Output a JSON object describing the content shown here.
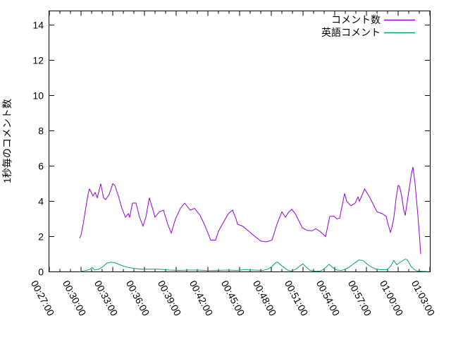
{
  "chart_data": {
    "type": "line",
    "title": "",
    "xlabel": "",
    "ylabel": "1秒毎のコメント数",
    "ylim": [
      0,
      14.8
    ],
    "y_ticks": [
      0,
      2,
      4,
      6,
      8,
      10,
      12,
      14
    ],
    "x_ticks": [
      "00:27:00",
      "00:30:00",
      "00:33:00",
      "00:36:00",
      "00:39:00",
      "00:42:00",
      "00:45:00",
      "00:48:00",
      "00:51:00",
      "00:54:00",
      "00:57:00",
      "01:00:00",
      "01:03:00"
    ],
    "x_minor_tick_seconds": 60,
    "grid": false,
    "legend_position": "top-right-inside",
    "axis_color": "#000000",
    "series": [
      {
        "name": "コメント数",
        "color": "#9400d3",
        "points": [
          [
            "00:29:52",
            1.9
          ],
          [
            "00:30:00",
            2.1
          ],
          [
            "00:30:12",
            2.7
          ],
          [
            "00:30:28",
            3.7
          ],
          [
            "00:30:40",
            4.4
          ],
          [
            "00:30:48",
            4.7
          ],
          [
            "00:31:08",
            4.3
          ],
          [
            "00:31:20",
            4.5
          ],
          [
            "00:31:32",
            4.2
          ],
          [
            "00:31:52",
            5.0
          ],
          [
            "00:32:08",
            4.2
          ],
          [
            "00:32:20",
            4.1
          ],
          [
            "00:32:40",
            4.4
          ],
          [
            "00:33:00",
            5.0
          ],
          [
            "00:33:12",
            4.9
          ],
          [
            "00:33:32",
            4.3
          ],
          [
            "00:33:52",
            3.6
          ],
          [
            "00:34:12",
            3.1
          ],
          [
            "00:34:28",
            3.3
          ],
          [
            "00:34:36",
            3.1
          ],
          [
            "00:34:52",
            3.9
          ],
          [
            "00:35:12",
            3.9
          ],
          [
            "00:35:32",
            3.1
          ],
          [
            "00:35:52",
            2.6
          ],
          [
            "00:36:08",
            3.1
          ],
          [
            "00:36:28",
            4.2
          ],
          [
            "00:37:00",
            3.1
          ],
          [
            "00:37:24",
            3.4
          ],
          [
            "00:37:48",
            3.5
          ],
          [
            "00:38:12",
            2.7
          ],
          [
            "00:38:32",
            2.2
          ],
          [
            "00:38:56",
            3.0
          ],
          [
            "00:39:24",
            3.6
          ],
          [
            "00:39:48",
            3.9
          ],
          [
            "00:40:20",
            3.5
          ],
          [
            "00:40:44",
            3.6
          ],
          [
            "00:41:16",
            3.2
          ],
          [
            "00:41:44",
            2.6
          ],
          [
            "00:42:16",
            1.8
          ],
          [
            "00:42:44",
            1.8
          ],
          [
            "00:43:00",
            2.3
          ],
          [
            "00:43:28",
            2.8
          ],
          [
            "00:43:56",
            3.3
          ],
          [
            "00:44:20",
            3.5
          ],
          [
            "00:44:40",
            3.0
          ],
          [
            "00:44:48",
            2.7
          ],
          [
            "00:45:16",
            2.6
          ],
          [
            "00:45:52",
            2.3
          ],
          [
            "00:46:28",
            2.0
          ],
          [
            "00:47:00",
            1.75
          ],
          [
            "00:47:32",
            1.7
          ],
          [
            "00:48:04",
            1.8
          ],
          [
            "00:48:32",
            2.7
          ],
          [
            "00:49:00",
            3.4
          ],
          [
            "00:49:20",
            3.1
          ],
          [
            "00:49:36",
            3.35
          ],
          [
            "00:49:56",
            3.55
          ],
          [
            "00:50:16",
            3.3
          ],
          [
            "00:50:56",
            2.5
          ],
          [
            "00:51:24",
            2.35
          ],
          [
            "00:51:52",
            2.33
          ],
          [
            "00:52:12",
            2.45
          ],
          [
            "00:52:36",
            2.3
          ],
          [
            "00:53:08",
            2.0
          ],
          [
            "00:53:32",
            3.15
          ],
          [
            "00:53:56",
            3.15
          ],
          [
            "00:54:12",
            3.0
          ],
          [
            "00:54:28",
            3.05
          ],
          [
            "00:54:56",
            4.45
          ],
          [
            "00:55:08",
            4.0
          ],
          [
            "00:55:32",
            3.75
          ],
          [
            "00:55:56",
            3.9
          ],
          [
            "00:56:12",
            4.25
          ],
          [
            "00:56:20",
            4.0
          ],
          [
            "00:56:50",
            4.7
          ],
          [
            "00:57:20",
            4.2
          ],
          [
            "00:57:40",
            3.8
          ],
          [
            "00:58:00",
            3.4
          ],
          [
            "00:58:30",
            3.3
          ],
          [
            "00:58:52",
            3.15
          ],
          [
            "00:59:00",
            2.8
          ],
          [
            "00:59:16",
            2.25
          ],
          [
            "00:59:24",
            2.5
          ],
          [
            "00:59:36",
            3.1
          ],
          [
            "00:59:48",
            4.15
          ],
          [
            "01:00:00",
            4.9
          ],
          [
            "01:00:08",
            4.85
          ],
          [
            "01:00:20",
            4.3
          ],
          [
            "01:00:32",
            3.5
          ],
          [
            "01:00:40",
            3.2
          ],
          [
            "01:00:52",
            4.0
          ],
          [
            "01:01:04",
            4.8
          ],
          [
            "01:01:16",
            5.6
          ],
          [
            "01:01:24",
            5.95
          ],
          [
            "01:01:36",
            5.0
          ],
          [
            "01:01:44",
            4.1
          ],
          [
            "01:01:52",
            3.2
          ],
          [
            "01:02:00",
            2.2
          ],
          [
            "01:02:08",
            1.0
          ]
        ]
      },
      {
        "name": "英語コメント",
        "color": "#009e73",
        "points": [
          [
            "00:29:52",
            0.0
          ],
          [
            "00:30:12",
            0.05
          ],
          [
            "00:30:36",
            0.1
          ],
          [
            "00:30:52",
            0.15
          ],
          [
            "00:31:04",
            0.25
          ],
          [
            "00:31:16",
            0.1
          ],
          [
            "00:31:40",
            0.15
          ],
          [
            "00:32:04",
            0.3
          ],
          [
            "00:32:28",
            0.5
          ],
          [
            "00:32:52",
            0.55
          ],
          [
            "00:33:16",
            0.5
          ],
          [
            "00:33:40",
            0.4
          ],
          [
            "00:34:00",
            0.33
          ],
          [
            "00:34:28",
            0.25
          ],
          [
            "00:35:00",
            0.2
          ],
          [
            "00:35:40",
            0.15
          ],
          [
            "00:36:28",
            0.15
          ],
          [
            "00:37:20",
            0.15
          ],
          [
            "00:38:20",
            0.1
          ],
          [
            "00:39:20",
            0.08
          ],
          [
            "00:40:12",
            0.1
          ],
          [
            "00:41:00",
            0.1
          ],
          [
            "00:42:00",
            0.07
          ],
          [
            "00:43:00",
            0.08
          ],
          [
            "00:43:48",
            0.1
          ],
          [
            "00:44:40",
            0.08
          ],
          [
            "00:45:32",
            0.12
          ],
          [
            "00:46:20",
            0.1
          ],
          [
            "00:47:12",
            0.08
          ],
          [
            "00:47:40",
            0.15
          ],
          [
            "00:48:04",
            0.3
          ],
          [
            "00:48:24",
            0.52
          ],
          [
            "00:48:36",
            0.55
          ],
          [
            "00:48:52",
            0.4
          ],
          [
            "00:49:12",
            0.25
          ],
          [
            "00:49:32",
            0.1
          ],
          [
            "00:49:52",
            0.05
          ],
          [
            "00:50:20",
            0.15
          ],
          [
            "00:50:44",
            0.35
          ],
          [
            "00:51:00",
            0.45
          ],
          [
            "00:51:20",
            0.25
          ],
          [
            "00:51:40",
            0.08
          ],
          [
            "00:52:12",
            0.03
          ],
          [
            "00:52:40",
            0.05
          ],
          [
            "00:53:04",
            0.2
          ],
          [
            "00:53:28",
            0.43
          ],
          [
            "00:53:48",
            0.25
          ],
          [
            "00:54:12",
            0.1
          ],
          [
            "00:54:40",
            0.08
          ],
          [
            "00:55:12",
            0.2
          ],
          [
            "00:55:40",
            0.4
          ],
          [
            "00:56:00",
            0.55
          ],
          [
            "00:56:16",
            0.67
          ],
          [
            "00:56:40",
            0.65
          ],
          [
            "00:57:00",
            0.47
          ],
          [
            "00:57:24",
            0.3
          ],
          [
            "00:57:48",
            0.17
          ],
          [
            "00:58:20",
            0.12
          ],
          [
            "00:58:56",
            0.12
          ],
          [
            "00:59:16",
            0.3
          ],
          [
            "00:59:36",
            0.65
          ],
          [
            "00:59:52",
            0.4
          ],
          [
            "01:00:20",
            0.6
          ],
          [
            "01:00:40",
            0.72
          ],
          [
            "01:00:52",
            0.68
          ],
          [
            "01:01:12",
            0.33
          ],
          [
            "01:01:32",
            0.13
          ],
          [
            "01:01:48",
            0.05
          ],
          [
            "01:02:12",
            0.03
          ],
          [
            "01:02:44",
            0.02
          ]
        ]
      }
    ]
  }
}
